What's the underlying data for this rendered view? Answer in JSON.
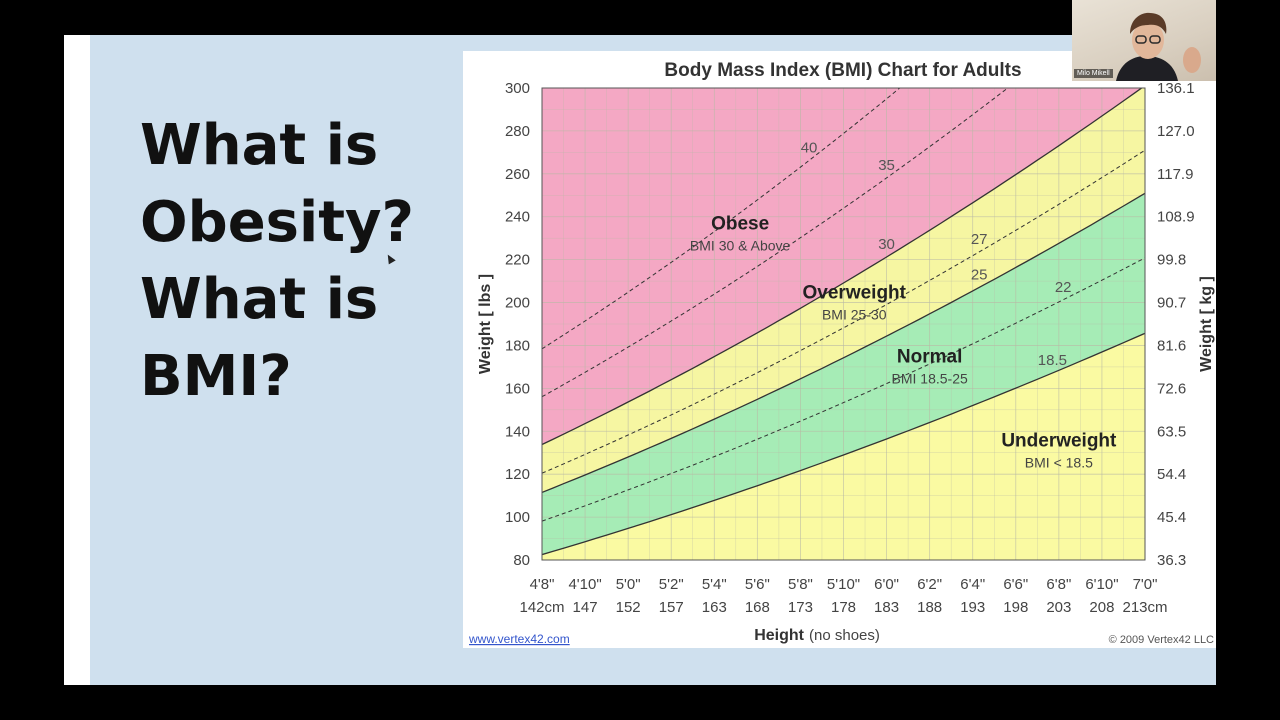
{
  "slide": {
    "title_lines": [
      "What is",
      "Obesity?",
      "What is",
      "BMI?"
    ]
  },
  "webcam": {
    "name": "Milo Mikell"
  },
  "chart_data": {
    "type": "area",
    "title": "Body Mass Index (BMI) Chart for Adults",
    "xlabel_main": "Height",
    "xlabel_note": "(no shoes)",
    "ylabel": "Weight [ lbs ]",
    "ylabel_right": "Weight [ kg ]",
    "x_unit": "inches",
    "xlim": [
      56,
      84
    ],
    "ylim": [
      80,
      300
    ],
    "x_ticks": [
      56,
      58,
      60,
      62,
      64,
      66,
      68,
      70,
      72,
      74,
      76,
      78,
      80,
      82,
      84
    ],
    "x_tick_labels_ft": [
      "4'8\"",
      "4'10\"",
      "5'0\"",
      "5'2\"",
      "5'4\"",
      "5'6\"",
      "5'8\"",
      "5'10\"",
      "6'0\"",
      "6'2\"",
      "6'4\"",
      "6'6\"",
      "6'8\"",
      "6'10\"",
      "7'0\""
    ],
    "x_tick_labels_cm": [
      "142cm",
      "147",
      "152",
      "157",
      "163",
      "168",
      "173",
      "178",
      "183",
      "188",
      "193",
      "198",
      "203",
      "208",
      "213cm"
    ],
    "y_ticks": [
      80,
      100,
      120,
      140,
      160,
      180,
      200,
      220,
      240,
      260,
      280,
      300
    ],
    "y_tick_labels": [
      "80",
      "100",
      "120",
      "140",
      "160",
      "180",
      "200",
      "220",
      "240",
      "260",
      "280",
      "300"
    ],
    "y_right_ticks": [
      80,
      100,
      120,
      140,
      160,
      180,
      200,
      220,
      240,
      260,
      280,
      300
    ],
    "y_right_tick_labels": [
      "36.3",
      "45.4",
      "54.4",
      "63.5",
      "72.6",
      "81.6",
      "90.7",
      "99.8",
      "108.9",
      "117.9",
      "127.0",
      "136.1"
    ],
    "grid": true,
    "series": [
      {
        "name": "Underweight",
        "sublabel": "BMI < 18.5",
        "bmi_low": 0,
        "bmi_high": 18.5,
        "color": "#fafaa2"
      },
      {
        "name": "Normal",
        "sublabel": "BMI 18.5-25",
        "bmi_low": 18.5,
        "bmi_high": 25,
        "color": "#a6ecb6"
      },
      {
        "name": "Overweight",
        "sublabel": "BMI 25-30",
        "bmi_low": 25,
        "bmi_high": 30,
        "color": "#f6f6a2"
      },
      {
        "name": "Obese",
        "sublabel": "BMI 30 & Above",
        "bmi_low": 30,
        "bmi_high": 100,
        "color": "#f4a8c4"
      }
    ],
    "bmi_lines": [
      {
        "bmi": 18.5,
        "label": "18.5",
        "style": "solid",
        "label_x": 79.7
      },
      {
        "bmi": 22,
        "label": "22",
        "style": "dashed",
        "label_x": 80.2
      },
      {
        "bmi": 25,
        "label": "25",
        "style": "solid",
        "label_x": 76.3
      },
      {
        "bmi": 27,
        "label": "27",
        "style": "dashed",
        "label_x": 76.3
      },
      {
        "bmi": 30,
        "label": "30",
        "style": "solid",
        "label_x": 72.0
      },
      {
        "bmi": 35,
        "label": "35",
        "style": "dashed",
        "label_x": 72.0
      },
      {
        "bmi": 40,
        "label": "40",
        "style": "dashed",
        "label_x": 68.4
      }
    ],
    "category_labels": [
      {
        "name": "Obese",
        "sublabel": "BMI 30 & Above",
        "x": 65.2,
        "y": 234
      },
      {
        "name": "Overweight",
        "sublabel": "BMI 25-30",
        "x": 70.5,
        "y": 202
      },
      {
        "name": "Normal",
        "sublabel": "BMI 18.5-25",
        "x": 74.0,
        "y": 172
      },
      {
        "name": "Underweight",
        "sublabel": "BMI < 18.5",
        "x": 80.0,
        "y": 133
      }
    ],
    "footer_left": "www.vertex42.com",
    "footer_right": "© 2009 Vertex42 LLC"
  }
}
